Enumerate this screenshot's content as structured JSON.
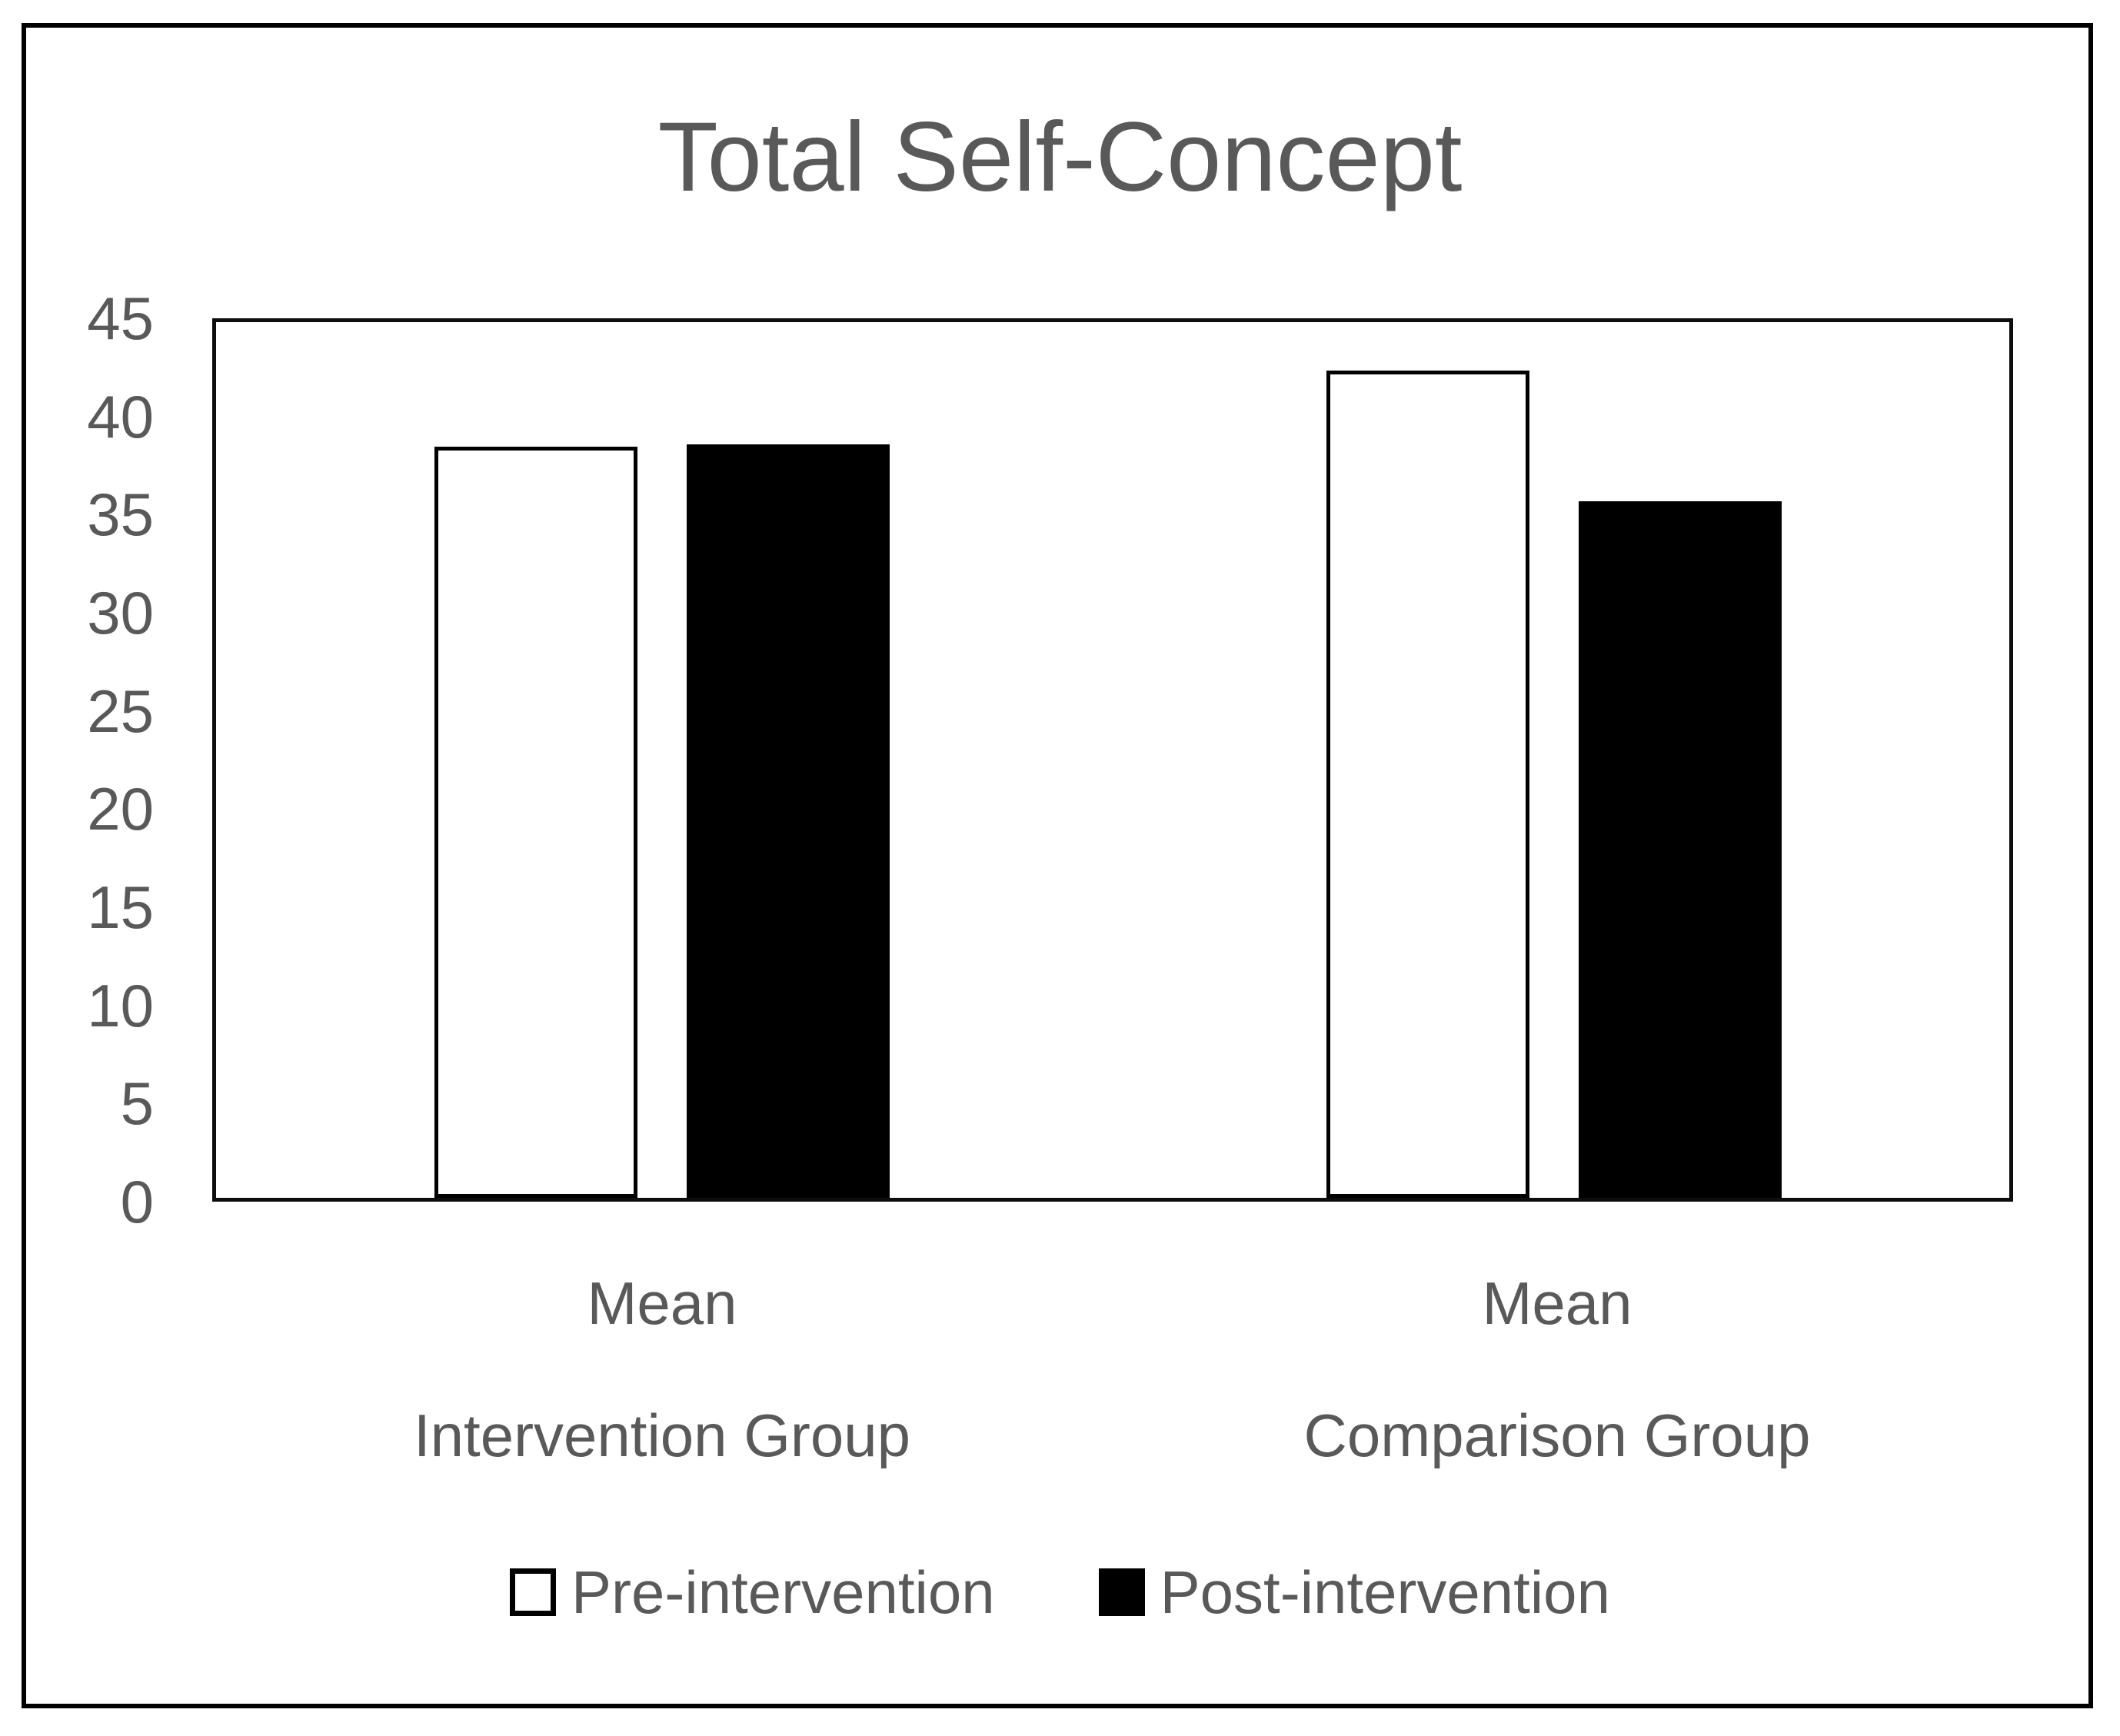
{
  "figure": {
    "title": "Total Self-Concept"
  },
  "colors": {
    "text": "#595959",
    "frame_border": "#000000",
    "plot_border": "#0d0d0d",
    "pre_fill": "#ffffff",
    "pre_outline": "#000000",
    "post_fill": "#000000",
    "post_outline": "#000000",
    "background": "#ffffff"
  },
  "chart_data": {
    "type": "bar",
    "title": "Total Self-Concept",
    "categories": [
      "Mean Intervention Group",
      "Mean Comparison Group"
    ],
    "category_lines": [
      {
        "line1": "Mean",
        "line2": "Intervention Group"
      },
      {
        "line1": "Mean",
        "line2": "Comparison Group"
      }
    ],
    "series": [
      {
        "name": "Pre-intervention",
        "values": [
          38.6,
          42.5
        ]
      },
      {
        "name": "Post-intervention",
        "values": [
          38.7,
          35.8
        ]
      }
    ],
    "xlabel": "",
    "ylabel": "",
    "ylim": [
      0,
      45
    ],
    "ytick_step": 5,
    "yticks": [
      45,
      40,
      35,
      30,
      25,
      20,
      15,
      10,
      5,
      0
    ],
    "grid": false,
    "legend_position": "bottom"
  },
  "legend": {
    "items": [
      {
        "label": "Pre-intervention",
        "swatch": "white-outlined-square"
      },
      {
        "label": "Post-intervention",
        "swatch": "black-filled-square"
      }
    ]
  }
}
